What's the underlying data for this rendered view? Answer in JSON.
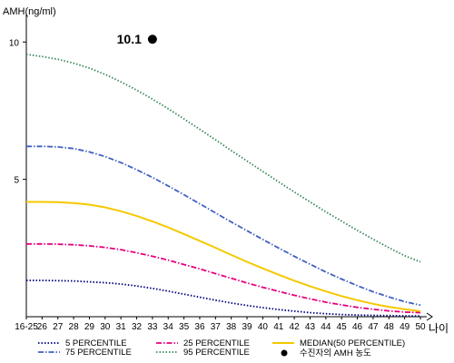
{
  "chart_data": {
    "type": "line",
    "title": "",
    "ylabel": "AMH(ng/ml)",
    "xlabel": "나이",
    "ylim": [
      0,
      11
    ],
    "y_ticks": [
      5,
      10
    ],
    "x": [
      "16-25",
      "26",
      "27",
      "28",
      "29",
      "30",
      "31",
      "32",
      "33",
      "34",
      "35",
      "36",
      "37",
      "38",
      "39",
      "40",
      "41",
      "42",
      "43",
      "44",
      "45",
      "46",
      "47",
      "48",
      "49",
      "50"
    ],
    "grid": false,
    "legend_position": "bottom",
    "series": [
      {
        "name": "5 PERCENTILE",
        "color": "#000080",
        "style": "dotted",
        "values": [
          1.32,
          1.32,
          1.31,
          1.3,
          1.27,
          1.24,
          1.19,
          1.12,
          1.03,
          0.93,
          0.82,
          0.71,
          0.6,
          0.5,
          0.41,
          0.33,
          0.26,
          0.2,
          0.15,
          0.11,
          0.08,
          0.06,
          0.05,
          0.04,
          0.03,
          0.03
        ]
      },
      {
        "name": "25 PERCENTILE",
        "color": "#E6007E",
        "style": "dashdot",
        "values": [
          2.65,
          2.65,
          2.64,
          2.62,
          2.58,
          2.52,
          2.44,
          2.33,
          2.2,
          2.06,
          1.9,
          1.74,
          1.57,
          1.4,
          1.23,
          1.07,
          0.92,
          0.78,
          0.65,
          0.53,
          0.43,
          0.34,
          0.27,
          0.21,
          0.17,
          0.15
        ]
      },
      {
        "name": "MEDIAN(50 PERCENTILE)",
        "color": "#F5C800",
        "style": "solid",
        "values": [
          4.18,
          4.18,
          4.17,
          4.14,
          4.08,
          3.98,
          3.84,
          3.67,
          3.47,
          3.25,
          3.01,
          2.76,
          2.51,
          2.25,
          2.0,
          1.76,
          1.53,
          1.31,
          1.11,
          0.92,
          0.75,
          0.6,
          0.47,
          0.36,
          0.27,
          0.2
        ]
      },
      {
        "name": "75 PERCENTILE",
        "color": "#4060C0",
        "style": "dashdot",
        "values": [
          6.2,
          6.2,
          6.18,
          6.12,
          6.0,
          5.83,
          5.61,
          5.35,
          5.07,
          4.76,
          4.44,
          4.11,
          3.78,
          3.45,
          3.13,
          2.81,
          2.5,
          2.2,
          1.91,
          1.63,
          1.37,
          1.13,
          0.91,
          0.72,
          0.55,
          0.42
        ]
      },
      {
        "name": "95 PERCENTILE",
        "color": "#3A8A5A",
        "style": "dotted",
        "values": [
          9.55,
          9.47,
          9.37,
          9.23,
          9.05,
          8.82,
          8.55,
          8.25,
          7.92,
          7.57,
          7.2,
          6.82,
          6.44,
          6.05,
          5.67,
          5.29,
          4.91,
          4.54,
          4.18,
          3.82,
          3.48,
          3.14,
          2.82,
          2.51,
          2.22,
          2.0
        ]
      }
    ],
    "patient": {
      "x": "33",
      "y": 10.1,
      "label": "10.1",
      "legend": "수진자의 AMH 농도"
    }
  }
}
